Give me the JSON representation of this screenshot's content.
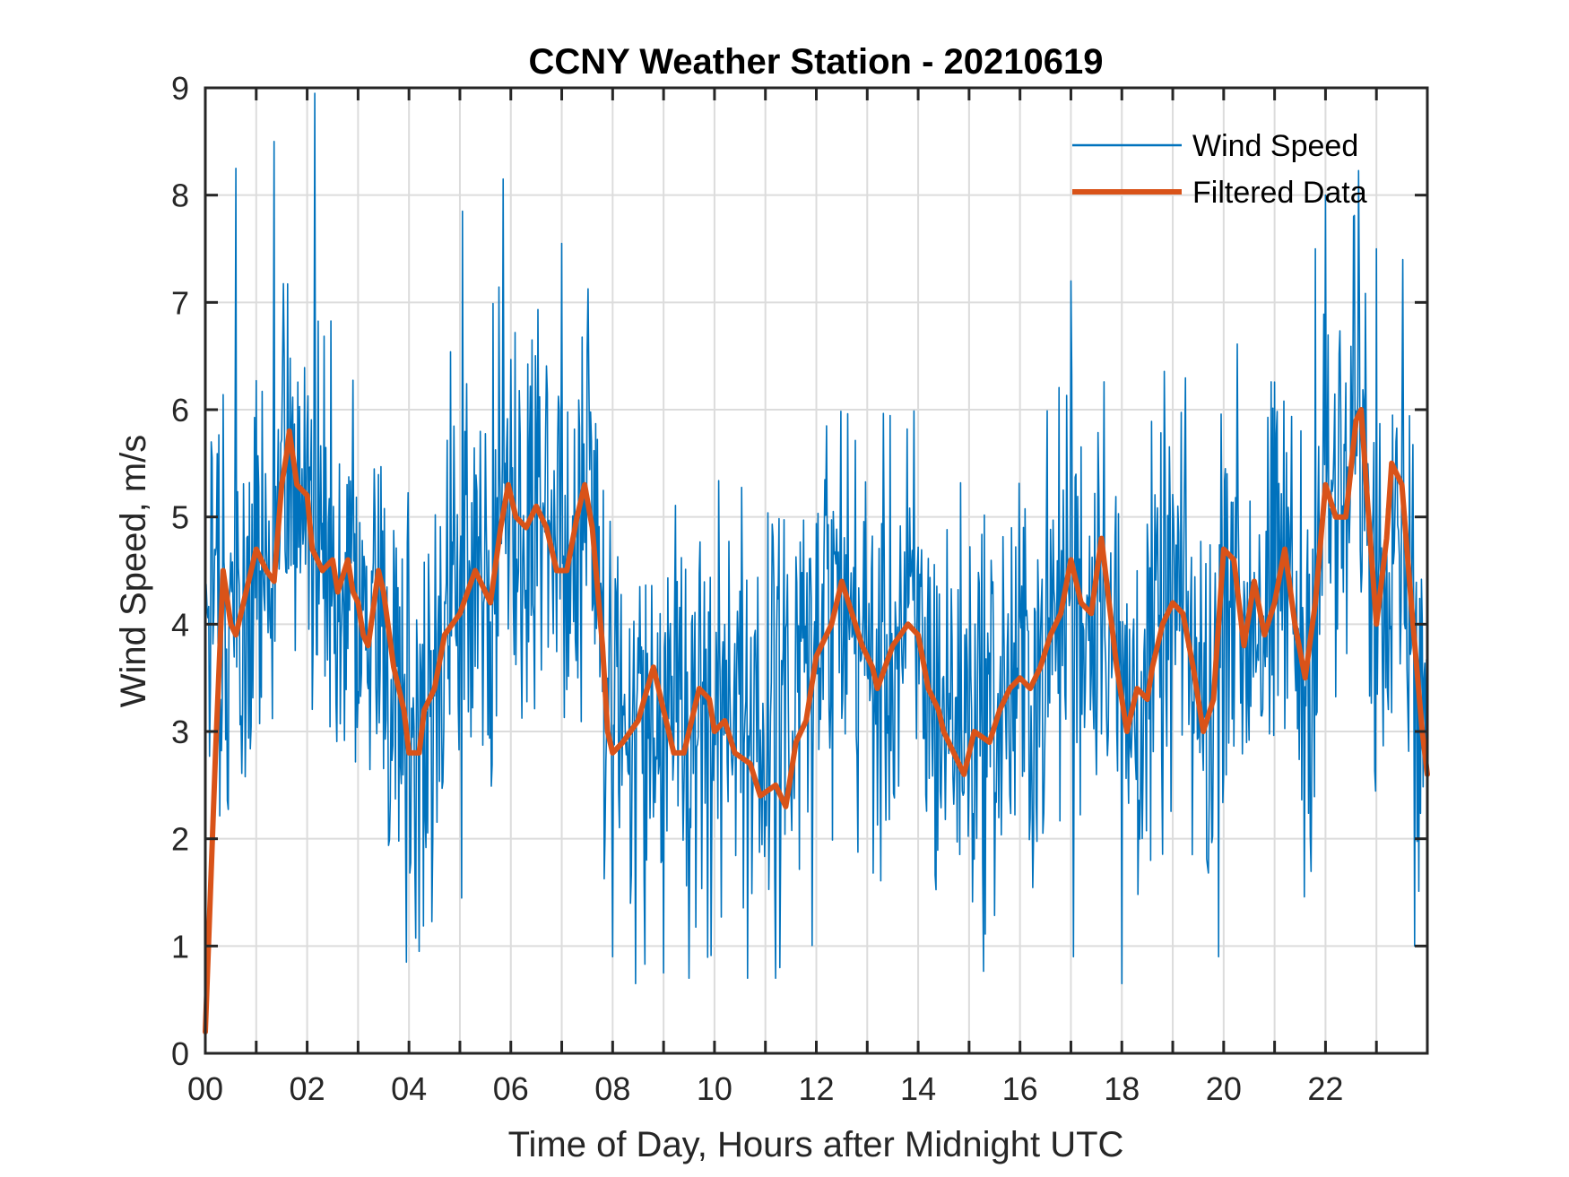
{
  "chart_data": {
    "type": "line",
    "title": "CCNY Weather Station - 20210619",
    "xlabel": "Time of Day, Hours after Midnight UTC",
    "ylabel": "Wind Speed, m/s",
    "xlim": [
      0,
      24
    ],
    "ylim": [
      0,
      9
    ],
    "x_ticks": [
      0,
      2,
      4,
      6,
      8,
      10,
      12,
      14,
      16,
      18,
      20,
      22
    ],
    "x_tick_labels": [
      "00",
      "02",
      "04",
      "06",
      "08",
      "10",
      "12",
      "14",
      "16",
      "18",
      "20",
      "22"
    ],
    "x_minor_step": 1,
    "y_ticks": [
      0,
      1,
      2,
      3,
      4,
      5,
      6,
      7,
      8,
      9
    ],
    "y_tick_labels": [
      "0",
      "1",
      "2",
      "3",
      "4",
      "5",
      "6",
      "7",
      "8",
      "9"
    ],
    "grid": true,
    "legend_position": "top-right",
    "series": [
      {
        "name": "Wind Speed",
        "color": "#0072BD",
        "style": "thin",
        "note": "high-frequency raw samples; envelope approx. 0.7–9.0 m/s",
        "peaks": [
          [
            0.6,
            8.25
          ],
          [
            1.35,
            8.5
          ],
          [
            2.15,
            8.95
          ],
          [
            5.05,
            7.85
          ],
          [
            5.85,
            8.15
          ],
          [
            7.0,
            7.55
          ],
          [
            12.2,
            5.85
          ],
          [
            17.0,
            7.2
          ],
          [
            21.8,
            7.5
          ],
          [
            22.0,
            8.0
          ],
          [
            22.55,
            7.8
          ],
          [
            23.0,
            7.5
          ]
        ],
        "troughs": [
          [
            3.95,
            0.85
          ],
          [
            4.2,
            0.95
          ],
          [
            8.0,
            0.9
          ],
          [
            9.0,
            0.75
          ],
          [
            9.5,
            0.7
          ],
          [
            10.65,
            0.7
          ],
          [
            11.2,
            0.7
          ],
          [
            17.05,
            0.9
          ],
          [
            18.0,
            0.65
          ],
          [
            19.9,
            0.9
          ],
          [
            23.75,
            1.0
          ]
        ]
      },
      {
        "name": "Filtered Data",
        "color": "#D95319",
        "style": "thick",
        "x": [
          0.0,
          0.1,
          0.2,
          0.35,
          0.5,
          0.6,
          0.75,
          1.0,
          1.2,
          1.35,
          1.5,
          1.6,
          1.65,
          1.8,
          2.0,
          2.1,
          2.3,
          2.5,
          2.6,
          2.8,
          2.9,
          3.0,
          3.1,
          3.2,
          3.4,
          3.5,
          3.7,
          3.9,
          4.0,
          4.2,
          4.3,
          4.5,
          4.7,
          5.0,
          5.3,
          5.5,
          5.6,
          5.8,
          5.95,
          6.1,
          6.3,
          6.5,
          6.7,
          6.9,
          7.1,
          7.3,
          7.45,
          7.6,
          7.8,
          7.9,
          8.0,
          8.2,
          8.5,
          8.8,
          9.0,
          9.2,
          9.4,
          9.7,
          9.9,
          10.0,
          10.2,
          10.4,
          10.7,
          10.9,
          11.2,
          11.4,
          11.6,
          11.8,
          12.0,
          12.3,
          12.5,
          12.7,
          12.9,
          13.1,
          13.2,
          13.5,
          13.8,
          14.0,
          14.2,
          14.4,
          14.5,
          14.7,
          14.9,
          15.1,
          15.4,
          15.6,
          15.8,
          16.0,
          16.2,
          16.4,
          16.6,
          16.8,
          17.0,
          17.2,
          17.4,
          17.6,
          17.7,
          17.9,
          18.1,
          18.3,
          18.5,
          18.6,
          18.8,
          19.0,
          19.2,
          19.4,
          19.6,
          19.8,
          20.0,
          20.2,
          20.4,
          20.6,
          20.8,
          21.0,
          21.2,
          21.4,
          21.6,
          21.8,
          22.0,
          22.2,
          22.4,
          22.6,
          22.7,
          22.8,
          23.0,
          23.2,
          23.3,
          23.5,
          23.7,
          23.9,
          24.0
        ],
        "values": [
          0.2,
          1.5,
          2.8,
          4.5,
          4.0,
          3.9,
          4.2,
          4.7,
          4.5,
          4.4,
          5.3,
          5.6,
          5.8,
          5.3,
          5.2,
          4.7,
          4.5,
          4.6,
          4.3,
          4.6,
          4.3,
          4.2,
          3.9,
          3.8,
          4.5,
          4.3,
          3.6,
          3.2,
          2.8,
          2.8,
          3.2,
          3.4,
          3.9,
          4.1,
          4.5,
          4.3,
          4.2,
          4.9,
          5.3,
          5.0,
          4.9,
          5.1,
          4.9,
          4.5,
          4.5,
          5.0,
          5.3,
          4.9,
          3.8,
          3.0,
          2.8,
          2.9,
          3.1,
          3.6,
          3.2,
          2.8,
          2.8,
          3.4,
          3.3,
          3.0,
          3.1,
          2.8,
          2.7,
          2.4,
          2.5,
          2.3,
          2.9,
          3.1,
          3.7,
          4.0,
          4.4,
          4.1,
          3.8,
          3.6,
          3.4,
          3.8,
          4.0,
          3.9,
          3.4,
          3.2,
          3.0,
          2.8,
          2.6,
          3.0,
          2.9,
          3.2,
          3.4,
          3.5,
          3.4,
          3.6,
          3.9,
          4.1,
          4.6,
          4.2,
          4.1,
          4.8,
          4.4,
          3.6,
          3.0,
          3.4,
          3.3,
          3.6,
          4.0,
          4.2,
          4.1,
          3.6,
          3.0,
          3.3,
          4.7,
          4.6,
          3.8,
          4.4,
          3.9,
          4.2,
          4.7,
          4.0,
          3.5,
          4.2,
          5.3,
          5.0,
          5.0,
          5.9,
          6.0,
          5.3,
          4.0,
          4.8,
          5.5,
          5.3,
          4.1,
          3.0,
          2.6
        ]
      }
    ]
  }
}
